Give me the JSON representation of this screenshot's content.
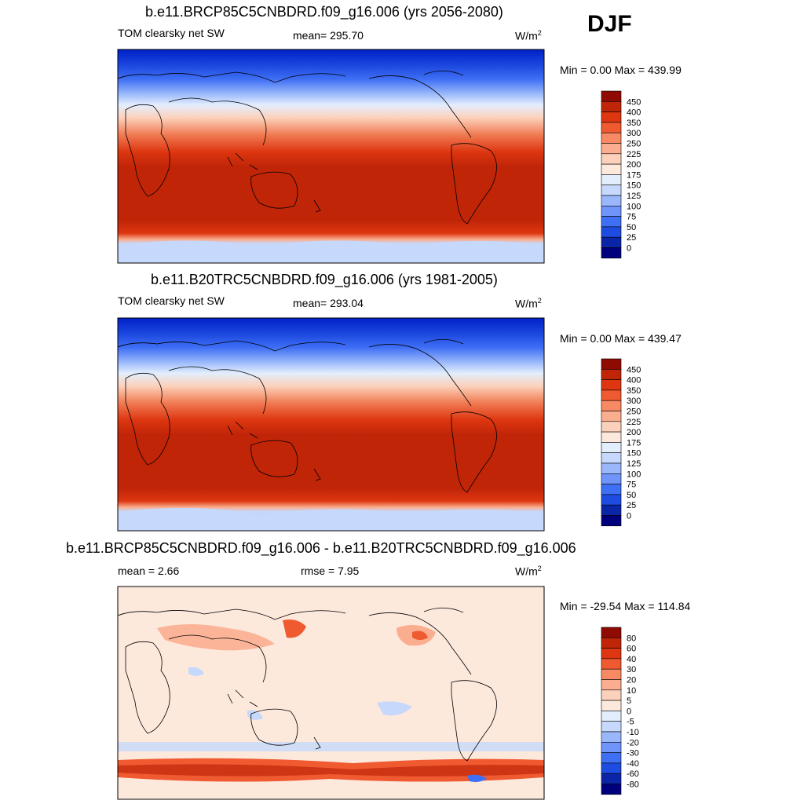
{
  "season": "DJF",
  "colors": {
    "pos_scale": [
      "#00007f",
      "#0b25a8",
      "#1e4be0",
      "#3f6ff5",
      "#6f95fa",
      "#9bb7fb",
      "#c6d8fb",
      "#e3eefd",
      "#fde8dc",
      "#fcd1bb",
      "#fbae8f",
      "#f88a63",
      "#ef5a31",
      "#dd3610",
      "#c02508",
      "#8f0a02"
    ],
    "diff_scale": [
      "#00007f",
      "#0b25a8",
      "#1e4be0",
      "#3f6ff5",
      "#6f95fa",
      "#9bb7fb",
      "#c6d8fb",
      "#e3eefd",
      "#fde8dc",
      "#fcd1bb",
      "#fbae8f",
      "#f88a63",
      "#ef5a31",
      "#dd3610",
      "#c02508",
      "#8f0a02"
    ]
  },
  "panels": [
    {
      "id": "future",
      "title": "b.e11.BRCP85C5CNBDRD.f09_g16.006 (yrs 2056-2080)",
      "left_label": "TOM clearsky net SW",
      "center_label": "mean= 295.70",
      "units": "W/m",
      "units_sup": "2",
      "minmax": "Min =   0.00 Max = 439.99",
      "colorbar_labels": [
        "450",
        "400",
        "350",
        "300",
        "250",
        "225",
        "200",
        "175",
        "150",
        "125",
        "100",
        "75",
        "50",
        "25",
        "0"
      ]
    },
    {
      "id": "historical",
      "title": "b.e11.B20TRC5CNBDRD.f09_g16.006 (yrs 1981-2005)",
      "left_label": "TOM clearsky net SW",
      "center_label": "mean= 293.04",
      "units": "W/m",
      "units_sup": "2",
      "minmax": "Min =   0.00 Max = 439.47",
      "colorbar_labels": [
        "450",
        "400",
        "350",
        "300",
        "250",
        "225",
        "200",
        "175",
        "150",
        "125",
        "100",
        "75",
        "50",
        "25",
        "0"
      ]
    },
    {
      "id": "difference",
      "title": "b.e11.BRCP85C5CNBDRD.f09_g16.006 - b.e11.B20TRC5CNBDRD.f09_g16.006",
      "left_label": "mean =   2.66",
      "center_label": "rmse =   7.95",
      "units": "W/m",
      "units_sup": "2",
      "minmax": "Min = -29.54 Max = 114.84",
      "colorbar_labels": [
        "80",
        "60",
        "40",
        "30",
        "20",
        "10",
        "5",
        "0",
        "-5",
        "-10",
        "-20",
        "-30",
        "-40",
        "-60",
        "-80"
      ]
    }
  ]
}
